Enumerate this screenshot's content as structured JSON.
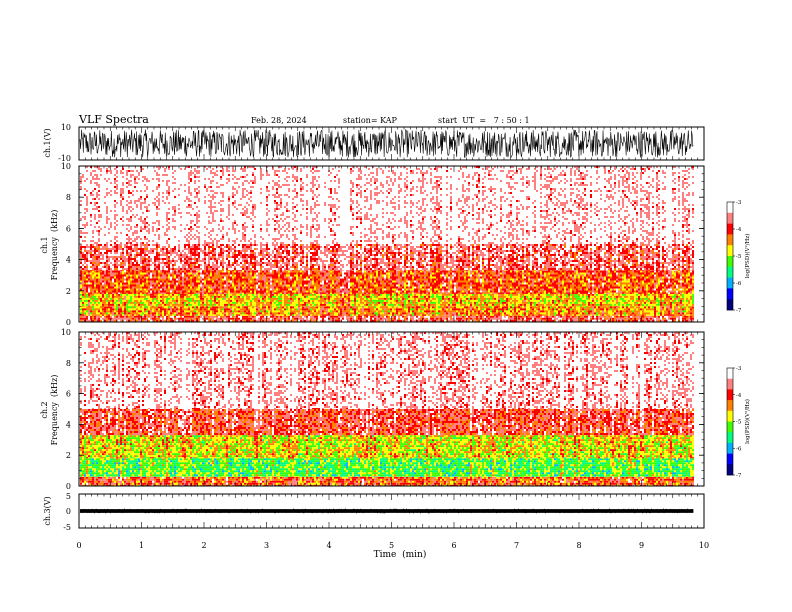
{
  "header": {
    "title": "VLF Spectra",
    "date": "Feb. 28, 2024",
    "station": "station= KAP",
    "start": "start  UT  =   7 : 50 : 1"
  },
  "chart_data": [
    {
      "id": "waveform-ch1",
      "type": "line",
      "ylabel": "ch.1(V)",
      "ylim": [
        -10,
        10
      ],
      "yticks": [
        "10",
        "-10"
      ],
      "xlim": [
        0,
        10
      ],
      "data_end_min": 9.83,
      "description_values": {
        "amplitude_range": [
          -10,
          10
        ]
      }
    },
    {
      "id": "spectrogram-ch1",
      "type": "heatmap",
      "ylabel_top": "ch.1",
      "ylabel": "Frequency  (kHz)",
      "ylim": [
        0,
        10
      ],
      "yticks": [
        "0",
        "2",
        "4",
        "6",
        "8",
        "10"
      ],
      "xlim": [
        0,
        10
      ],
      "data_end_min": 9.83,
      "colorbar": {
        "label": "log(PSD)(V²/Hz)",
        "range": [
          -7,
          -3
        ],
        "ticks": [
          "-3",
          "-4",
          "-5",
          "-6",
          "-7"
        ],
        "colors": [
          "#000080",
          "#0000ff",
          "#00b0ff",
          "#00ff80",
          "#40ff00",
          "#ffff00",
          "#ff8000",
          "#ff0000",
          "#ff8080",
          "#ffffff"
        ]
      },
      "bands_khz": [
        {
          "from": 0.0,
          "to": 0.4,
          "level": -4.0
        },
        {
          "from": 0.4,
          "to": 1.0,
          "level": -4.6
        },
        {
          "from": 1.0,
          "to": 1.8,
          "level": -4.8
        },
        {
          "from": 1.8,
          "to": 3.3,
          "level": -4.3
        },
        {
          "from": 3.3,
          "to": 5.0,
          "level": -3.8
        },
        {
          "from": 5.0,
          "to": 10.0,
          "level": -3.3
        }
      ]
    },
    {
      "id": "spectrogram-ch2",
      "type": "heatmap",
      "ylabel_top": "ch.2",
      "ylabel": "Frequency  (kHz)",
      "ylim": [
        0,
        10
      ],
      "yticks": [
        "0",
        "2",
        "4",
        "6",
        "8",
        "10"
      ],
      "xlim": [
        0,
        10
      ],
      "data_end_min": 9.83,
      "colorbar": {
        "label": "log(PSD)(V²/Hz)",
        "range": [
          -7,
          -3
        ],
        "ticks": [
          "-3",
          "-4",
          "-5",
          "-6",
          "-7"
        ],
        "colors": [
          "#000080",
          "#0000ff",
          "#00b0ff",
          "#00ff80",
          "#40ff00",
          "#ffff00",
          "#ff8000",
          "#ff0000",
          "#ff8080",
          "#ffffff"
        ]
      },
      "bands_khz": [
        {
          "from": 0.0,
          "to": 0.6,
          "level": -4.3
        },
        {
          "from": 0.6,
          "to": 1.8,
          "level": -5.4
        },
        {
          "from": 1.8,
          "to": 3.3,
          "level": -4.9
        },
        {
          "from": 3.3,
          "to": 5.0,
          "level": -4.0
        },
        {
          "from": 5.0,
          "to": 10.0,
          "level": -3.4
        }
      ]
    },
    {
      "id": "waveform-ch3",
      "type": "line",
      "ylabel": "ch.3(V)",
      "ylim": [
        -5,
        5
      ],
      "yticks": [
        "5",
        "0",
        "-5"
      ],
      "xlim": [
        0,
        10
      ],
      "data_end_min": 9.83,
      "description_values": {
        "amplitude_range": [
          -1,
          1
        ]
      }
    }
  ],
  "xaxis": {
    "label": "Time  (min)",
    "ticks": [
      "0",
      "1",
      "2",
      "3",
      "4",
      "5",
      "6",
      "7",
      "8",
      "9",
      "10"
    ]
  }
}
